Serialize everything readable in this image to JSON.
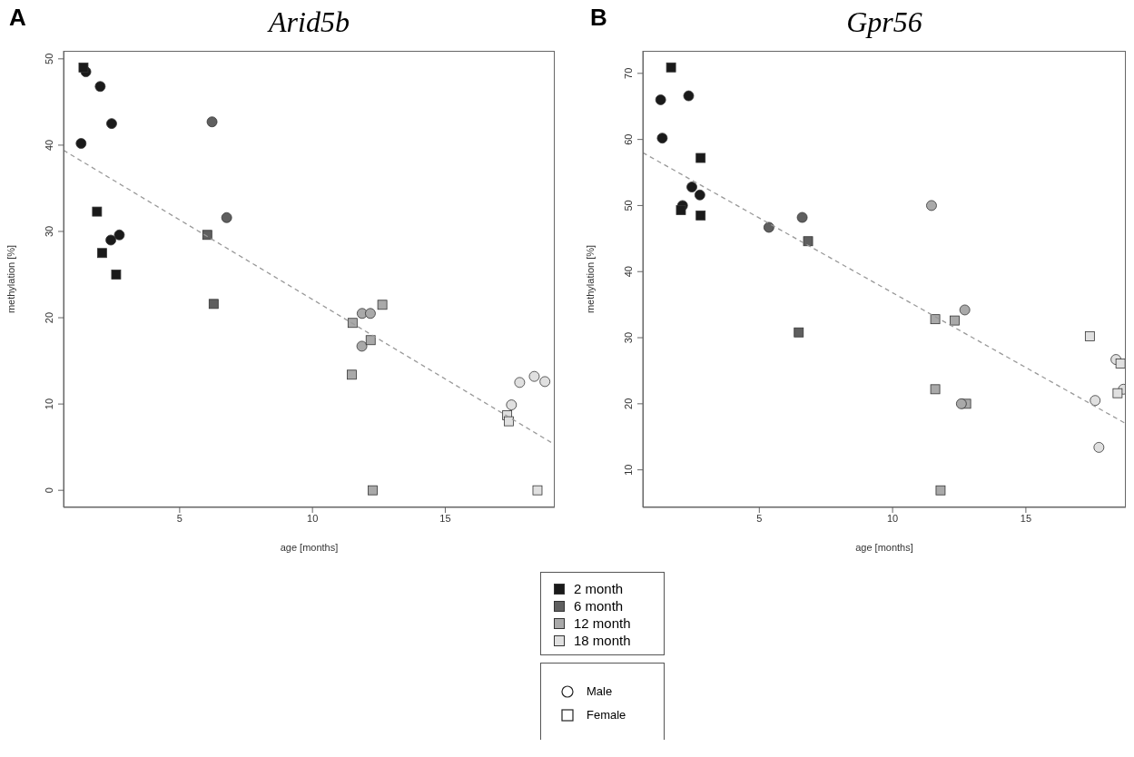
{
  "chart_data": [
    {
      "type": "scatter",
      "title": "Arid5b",
      "xlabel": "age [months]",
      "ylabel": "methylation [%]",
      "annotations": [
        "A"
      ],
      "xlim": [
        0.63,
        19.12
      ],
      "xticks": [
        5,
        10,
        15
      ],
      "ylim": [
        -1.98,
        50.93
      ],
      "yticks": [
        0,
        10,
        20,
        30,
        40,
        50
      ],
      "series": [
        {
          "color": "#1a1a1a",
          "marker": "circle",
          "x": [
            1.47,
            2.01,
            2.44,
            1.29,
            2.41,
            2.73
          ],
          "values": [
            48.5,
            46.8,
            42.5,
            40.2,
            29.0,
            29.6
          ]
        },
        {
          "color": "#1a1a1a",
          "marker": "square",
          "x": [
            1.38,
            1.89,
            2.08,
            2.61
          ],
          "values": [
            49.0,
            32.3,
            27.5,
            25.0
          ]
        },
        {
          "color": "#5f5f5f",
          "marker": "circle",
          "x": [
            6.22,
            6.77
          ],
          "values": [
            42.7,
            31.6
          ]
        },
        {
          "color": "#5f5f5f",
          "marker": "square",
          "x": [
            6.04,
            6.28
          ],
          "values": [
            29.6,
            21.6
          ]
        },
        {
          "color": "#a9a9a9",
          "marker": "circle",
          "x": [
            11.87,
            12.18,
            11.86
          ],
          "values": [
            20.5,
            20.5,
            16.7
          ]
        },
        {
          "color": "#a9a9a9",
          "marker": "square",
          "x": [
            11.51,
            12.63,
            12.19,
            11.48,
            12.27
          ],
          "values": [
            19.4,
            21.5,
            17.4,
            13.4,
            0
          ]
        },
        {
          "color": "#e0e0e0",
          "marker": "circle",
          "x": [
            17.8,
            18.35,
            18.75,
            17.49
          ],
          "values": [
            12.5,
            13.2,
            12.6,
            9.9
          ]
        },
        {
          "color": "#e0e0e0",
          "marker": "square",
          "x": [
            17.33,
            17.39,
            18.47
          ],
          "values": [
            8.7,
            8.0,
            0
          ]
        },
        {
          "type": "line",
          "color": "#999999",
          "line_style": "dashed",
          "marker": "none",
          "x": [
            0.63,
            19.12
          ],
          "values": [
            39.4,
            5.3
          ]
        }
      ]
    },
    {
      "type": "scatter",
      "title": "Gpr56",
      "xlabel": "age [months]",
      "ylabel": "methylation [%]",
      "annotations": [
        "B",
        "Male",
        "Female"
      ],
      "legend": "bottom left",
      "xlim": [
        0.63,
        18.75
      ],
      "xticks": [
        5,
        10,
        15
      ],
      "ylim": [
        4.32,
        73.41
      ],
      "yticks": [
        10,
        20,
        30,
        40,
        50,
        60,
        70
      ],
      "series": [
        {
          "color": "#1a1a1a",
          "marker": "circle",
          "x": [
            1.3,
            2.35,
            1.36,
            2.47,
            2.77,
            2.12
          ],
          "values": [
            66.0,
            66.6,
            60.2,
            52.8,
            51.6,
            50.0
          ]
        },
        {
          "name": "2 month",
          "color": "#1a1a1a",
          "marker": "square",
          "x": [
            1.69,
            2.8,
            2.06,
            2.8
          ],
          "values": [
            70.9,
            57.2,
            49.3,
            48.5
          ]
        },
        {
          "color": "#5f5f5f",
          "marker": "circle",
          "x": [
            5.36,
            6.61
          ],
          "values": [
            46.7,
            48.2
          ]
        },
        {
          "name": "6 month",
          "color": "#5f5f5f",
          "marker": "square",
          "x": [
            6.83,
            6.48
          ],
          "values": [
            44.6,
            30.8
          ]
        },
        {
          "name": "12 month",
          "color": "#a9a9a9",
          "marker": "square",
          "x": [
            11.6,
            12.33,
            11.6,
            12.76,
            11.8
          ],
          "values": [
            32.8,
            32.6,
            22.2,
            20.0,
            6.9
          ]
        },
        {
          "color": "#a9a9a9",
          "marker": "circle",
          "x": [
            11.46,
            12.71,
            12.58
          ],
          "values": [
            50.0,
            34.2,
            20.0
          ]
        },
        {
          "color": "#e0e0e0",
          "marker": "circle",
          "x": [
            18.38,
            17.6,
            17.74,
            18.66
          ],
          "values": [
            26.7,
            20.5,
            13.4,
            22.2
          ]
        },
        {
          "name": "18 month",
          "color": "#e0e0e0",
          "marker": "square",
          "x": [
            17.4,
            18.55,
            18.44
          ],
          "values": [
            30.2,
            26.1,
            21.6
          ]
        },
        {
          "type": "line",
          "color": "#999999",
          "line_style": "dashed",
          "marker": "none",
          "x": [
            0.63,
            18.75
          ],
          "values": [
            58.0,
            17.0
          ]
        }
      ]
    }
  ]
}
